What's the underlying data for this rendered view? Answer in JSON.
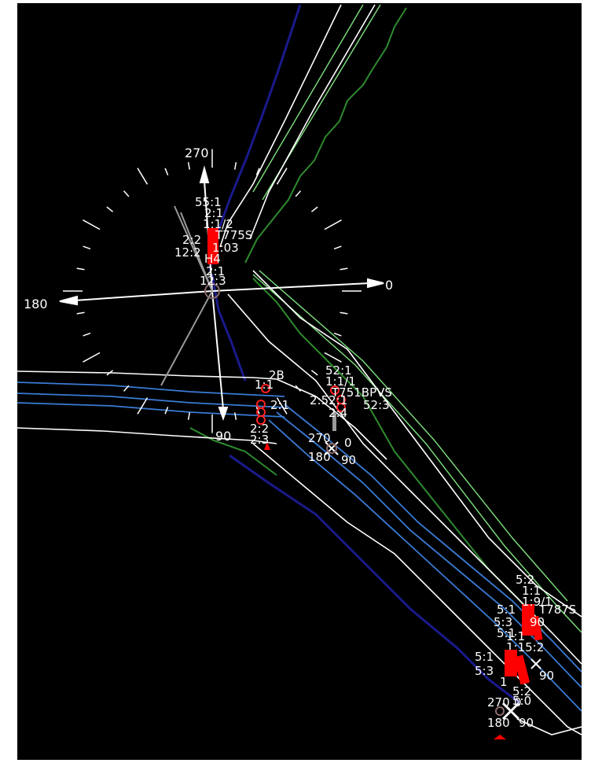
{
  "compass_main": {
    "north": "270",
    "east": "0",
    "west": "180",
    "south": "90"
  },
  "compass_mid": {
    "north": "270",
    "east": "0",
    "west": "180",
    "south": "90"
  },
  "compass_low": {
    "north": "270",
    "east": "0",
    "west": "180",
    "south": "90"
  },
  "compass_low_right": {
    "label": "90"
  },
  "pole_a_labels": [
    "55:1",
    "2:1",
    "1:1/2",
    "T775S",
    "2:2",
    "1:03",
    "12:2",
    "H4",
    "2:1",
    "12:3"
  ],
  "pole_b_labels": [
    "1:1",
    "2B",
    "2:1",
    "2:2",
    "2:3"
  ],
  "pole_c_labels": [
    "52:1",
    "1:1/1",
    "T751BPVS",
    "2:52:1",
    "2:4",
    "52:3"
  ],
  "pole_d_labels": [
    "5:2",
    "1:1",
    "1:9/1",
    "5:1",
    "T787S",
    "5:3",
    "5:1",
    "90",
    "1:1",
    "1:15:2"
  ],
  "pole_e_labels": [
    "5:1",
    "5:3",
    "1",
    "5:2",
    "5:0"
  ],
  "colors": {
    "background": "#000000",
    "road_edge": "#ffffff",
    "lane": "#3a7bd5",
    "green_veg": "#2e8b2e",
    "bright_green": "#7ee27e",
    "blue_points": "#1a1a8c",
    "pole_red": "#ff0000",
    "compass_gray": "#9a9a9a"
  }
}
